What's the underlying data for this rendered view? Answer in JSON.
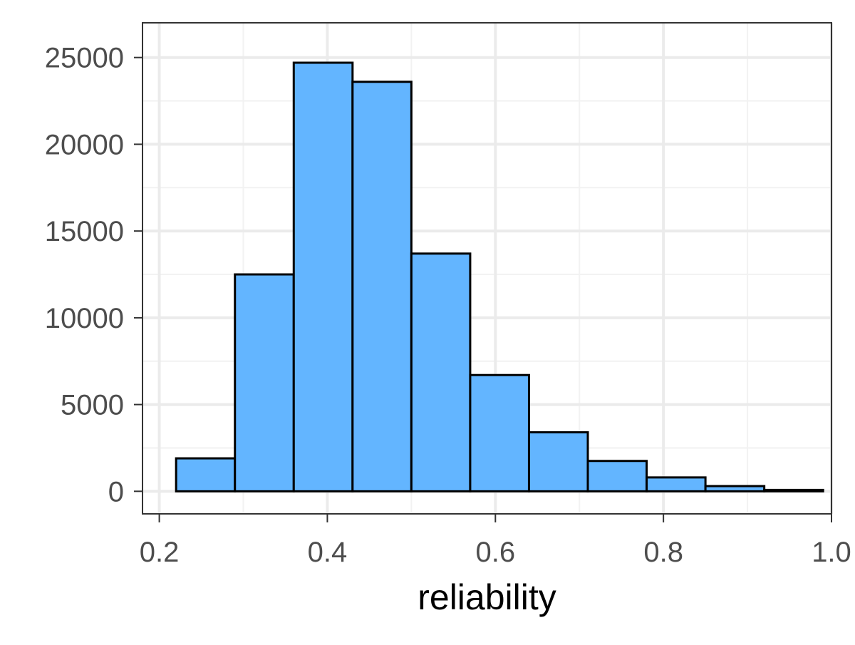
{
  "chart_data": {
    "type": "bar",
    "subtype": "histogram",
    "title": "",
    "xlabel": "reliability",
    "ylabel": "",
    "xlim": [
      0.18,
      1.0
    ],
    "ylim": [
      -1300,
      27000
    ],
    "x_ticks": [
      0.2,
      0.4,
      0.6,
      0.8,
      1.0
    ],
    "x_tick_labels": [
      "0.2",
      "0.4",
      "0.6",
      "0.8",
      "1.0"
    ],
    "y_ticks": [
      0,
      5000,
      10000,
      15000,
      20000,
      25000
    ],
    "y_tick_labels": [
      "0",
      "5000",
      "10000",
      "15000",
      "20000",
      "25000"
    ],
    "bins": [
      {
        "x0": 0.22,
        "x1": 0.29,
        "count": 1900
      },
      {
        "x0": 0.29,
        "x1": 0.36,
        "count": 12500
      },
      {
        "x0": 0.36,
        "x1": 0.43,
        "count": 24700
      },
      {
        "x0": 0.43,
        "x1": 0.5,
        "count": 23600
      },
      {
        "x0": 0.5,
        "x1": 0.57,
        "count": 13700
      },
      {
        "x0": 0.57,
        "x1": 0.64,
        "count": 6700
      },
      {
        "x0": 0.64,
        "x1": 0.71,
        "count": 3400
      },
      {
        "x0": 0.71,
        "x1": 0.78,
        "count": 1750
      },
      {
        "x0": 0.78,
        "x1": 0.85,
        "count": 800
      },
      {
        "x0": 0.85,
        "x1": 0.92,
        "count": 300
      },
      {
        "x0": 0.92,
        "x1": 0.99,
        "count": 80
      }
    ],
    "grid": true,
    "legend": "none",
    "colors": {
      "bar_fill": "#63b5ff",
      "bar_stroke": "#000000",
      "panel_border": "#333333",
      "grid_major": "#ebebeb",
      "grid_minor": "#f2f2f2",
      "tick_text": "#4d4d4d",
      "title_text": "#000000"
    }
  }
}
